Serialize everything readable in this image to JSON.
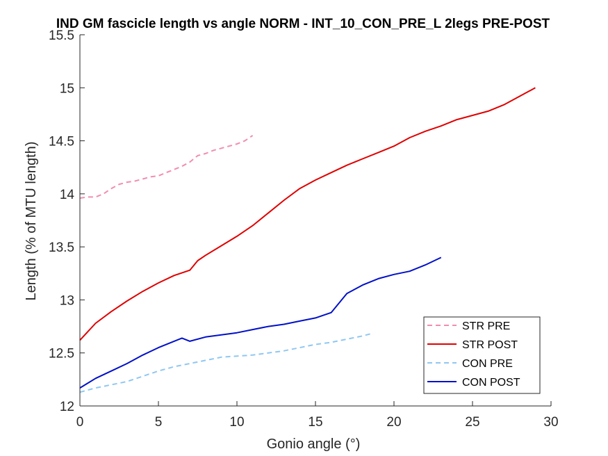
{
  "chart_data": {
    "type": "line",
    "title": "IND GM fascicle length vs angle NORM - INT_10_CON_PRE_L 2legs PRE-POST",
    "xlabel": "Gonio angle (°)",
    "ylabel": "Length (% of MTU length)",
    "xlim": [
      0,
      30
    ],
    "ylim": [
      12,
      15.5
    ],
    "x_ticks": [
      0,
      5,
      10,
      15,
      20,
      25,
      30
    ],
    "y_ticks": [
      12,
      12.5,
      13,
      13.5,
      14,
      14.5,
      15,
      15.5
    ],
    "x_tick_labels": [
      "0",
      "5",
      "10",
      "15",
      "20",
      "25",
      "30"
    ],
    "y_tick_labels": [
      "12",
      "12.5",
      "13",
      "13.5",
      "14",
      "14.5",
      "15",
      "15.5"
    ],
    "grid": false,
    "legend_position": "bottom-right",
    "series": [
      {
        "name": "STR PRE",
        "color": "#f28cb1",
        "style": "dashed",
        "x": [
          0,
          0.5,
          1,
          1.5,
          2,
          2.5,
          3,
          3.5,
          4,
          4.5,
          5,
          5.5,
          6,
          6.5,
          7,
          7.5,
          8,
          8.5,
          9,
          9.5,
          10,
          10.5,
          11
        ],
        "y": [
          13.96,
          13.97,
          13.97,
          14.0,
          14.05,
          14.09,
          14.11,
          14.12,
          14.14,
          14.16,
          14.17,
          14.2,
          14.23,
          14.26,
          14.3,
          14.36,
          14.38,
          14.41,
          14.43,
          14.45,
          14.47,
          14.5,
          14.55
        ]
      },
      {
        "name": "STR POST",
        "color": "#e00000",
        "style": "solid",
        "x": [
          0,
          1,
          2,
          3,
          4,
          5,
          6,
          7,
          7.5,
          8,
          9,
          10,
          11,
          12,
          13,
          14,
          15,
          16,
          17,
          18,
          19,
          20,
          21,
          22,
          23,
          24,
          25,
          26,
          27,
          28,
          29
        ],
        "y": [
          12.62,
          12.78,
          12.89,
          12.99,
          13.08,
          13.16,
          13.23,
          13.28,
          13.37,
          13.42,
          13.51,
          13.6,
          13.7,
          13.82,
          13.94,
          14.05,
          14.13,
          14.2,
          14.27,
          14.33,
          14.39,
          14.45,
          14.53,
          14.59,
          14.64,
          14.7,
          14.74,
          14.78,
          14.84,
          14.92,
          15.0
        ]
      },
      {
        "name": "CON PRE",
        "color": "#8fc7f2",
        "style": "dashed",
        "x": [
          0,
          1,
          2,
          3,
          4,
          5,
          6,
          7,
          8,
          9,
          10,
          11,
          12,
          13,
          14,
          15,
          16,
          17,
          18,
          18.5
        ],
        "y": [
          12.13,
          12.17,
          12.2,
          12.23,
          12.28,
          12.33,
          12.37,
          12.4,
          12.43,
          12.46,
          12.47,
          12.48,
          12.5,
          12.52,
          12.55,
          12.58,
          12.6,
          12.63,
          12.66,
          12.68
        ]
      },
      {
        "name": "CON POST",
        "color": "#0010c8",
        "style": "solid",
        "x": [
          0,
          1,
          2,
          3,
          4,
          5,
          6,
          6.5,
          7,
          8,
          9,
          10,
          11,
          12,
          13,
          14,
          15,
          16,
          16.5,
          17,
          18,
          19,
          20,
          21,
          22,
          23
        ],
        "y": [
          12.17,
          12.26,
          12.33,
          12.4,
          12.48,
          12.55,
          12.61,
          12.64,
          12.61,
          12.65,
          12.67,
          12.69,
          12.72,
          12.75,
          12.77,
          12.8,
          12.83,
          12.88,
          12.97,
          13.06,
          13.14,
          13.2,
          13.24,
          13.27,
          13.33,
          13.4
        ]
      }
    ]
  }
}
